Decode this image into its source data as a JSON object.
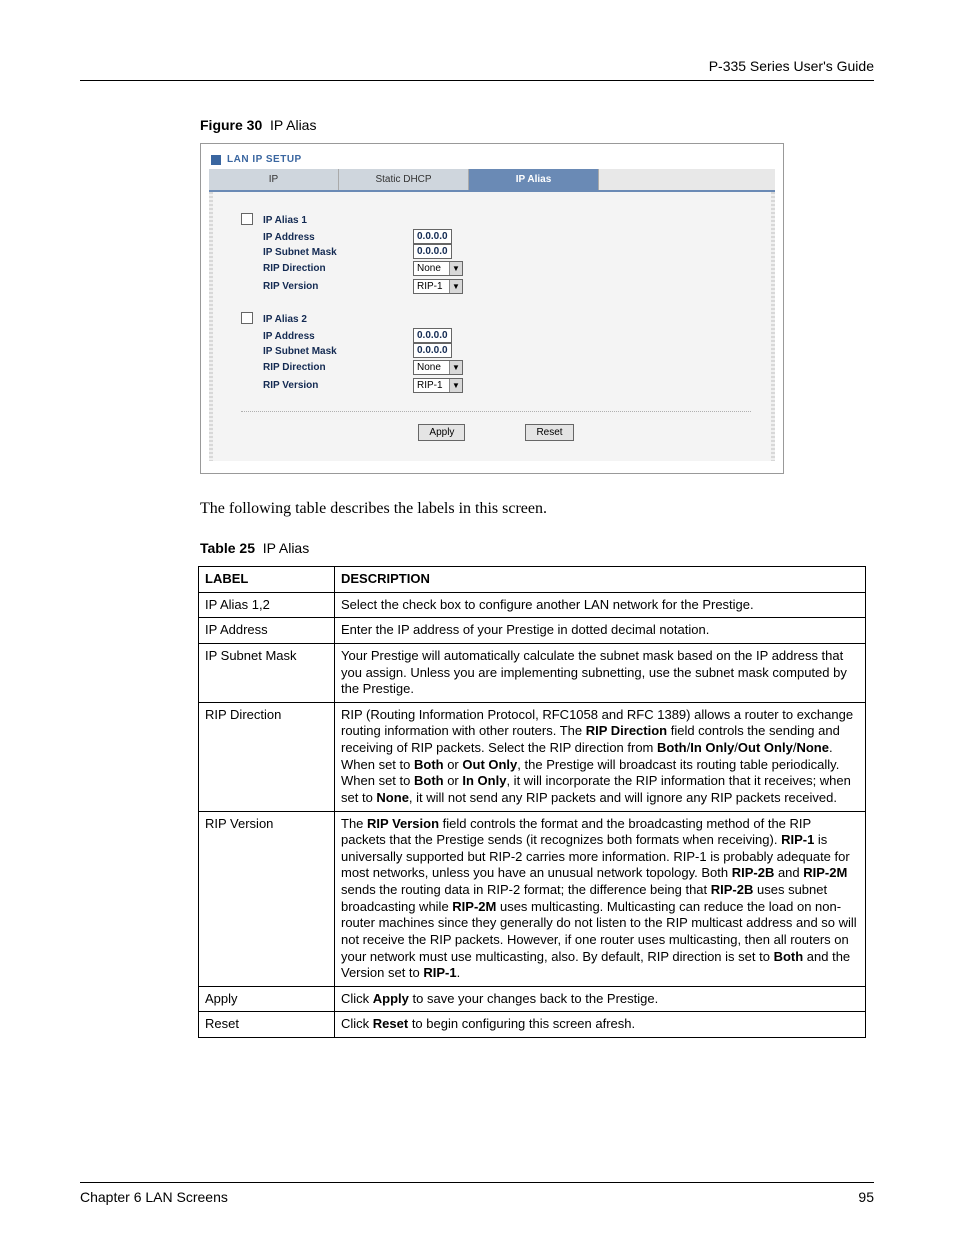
{
  "header": {
    "guide_title": "P-335 Series User's Guide"
  },
  "figure": {
    "label": "Figure 30",
    "title": "IP Alias"
  },
  "screenshot": {
    "panel_title": "LAN IP SETUP",
    "tabs": {
      "ip": "IP",
      "static_dhcp": "Static DHCP",
      "ip_alias": "IP Alias"
    },
    "alias1": {
      "heading": "IP Alias 1",
      "ip_label": "IP Address",
      "ip_value": "0.0.0.0",
      "mask_label": "IP Subnet Mask",
      "mask_value": "0.0.0.0",
      "ripdir_label": "RIP Direction",
      "ripdir_value": "None",
      "ripver_label": "RIP Version",
      "ripver_value": "RIP-1"
    },
    "alias2": {
      "heading": "IP Alias 2",
      "ip_label": "IP Address",
      "ip_value": "0.0.0.0",
      "mask_label": "IP Subnet Mask",
      "mask_value": "0.0.0.0",
      "ripdir_label": "RIP Direction",
      "ripdir_value": "None",
      "ripver_label": "RIP Version",
      "ripver_value": "RIP-1"
    },
    "buttons": {
      "apply": "Apply",
      "reset": "Reset"
    }
  },
  "body_text": "The following table describes the labels in this screen.",
  "table_caption": {
    "label": "Table 25",
    "title": "IP Alias"
  },
  "table": {
    "head": {
      "c1": "LABEL",
      "c2": "DESCRIPTION"
    },
    "rows": {
      "r1": {
        "label": "IP Alias 1,2"
      },
      "r2": {
        "label": "IP Address"
      },
      "r3": {
        "label": "IP Subnet Mask"
      },
      "r4": {
        "label": "RIP Direction"
      },
      "r5": {
        "label": "RIP Version"
      },
      "r6": {
        "label": "Apply"
      },
      "r7": {
        "label": "Reset"
      }
    }
  },
  "footer": {
    "chapter": "Chapter 6 LAN Screens",
    "page": "95"
  }
}
